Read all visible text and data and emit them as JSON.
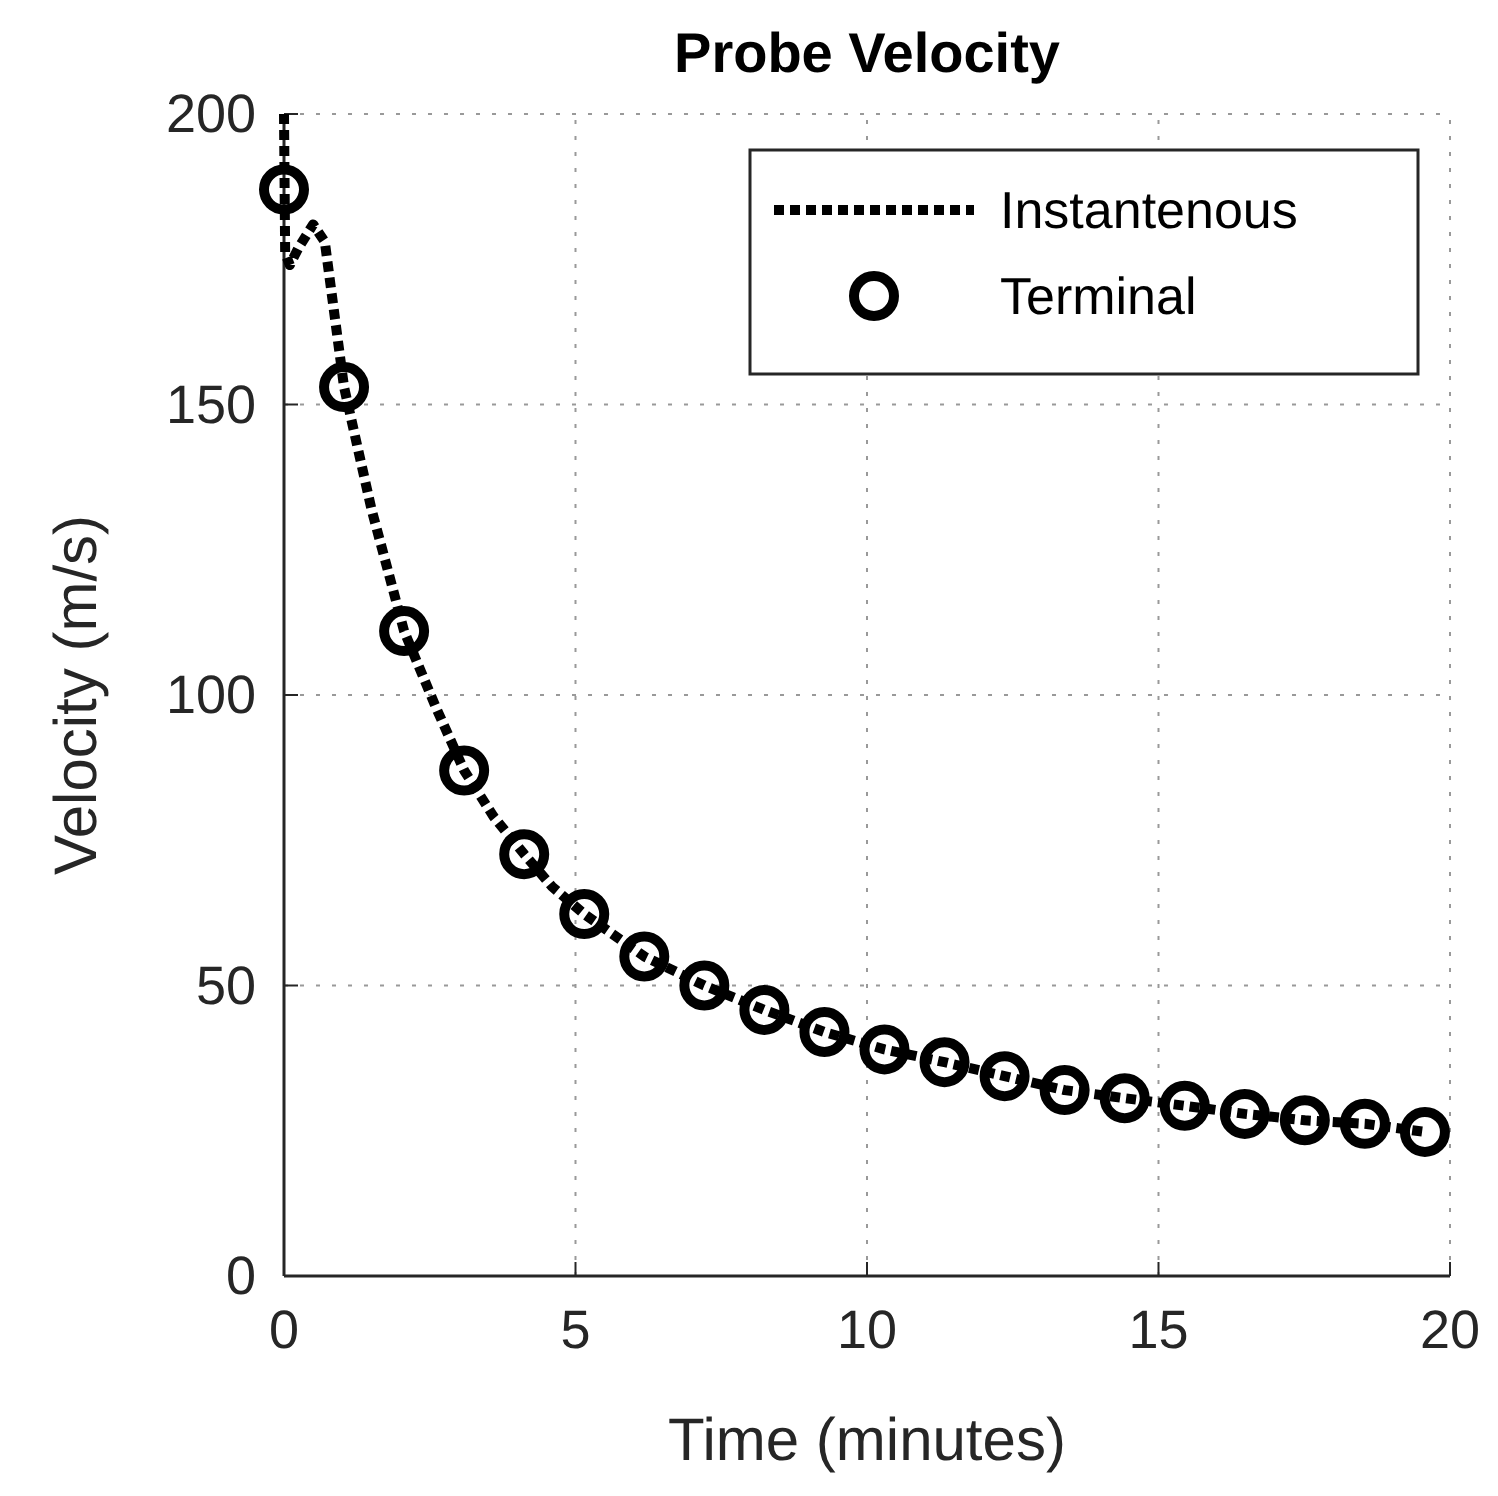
{
  "chart_data": {
    "type": "line",
    "title": "Probe Velocity",
    "xlabel": "Time (minutes)",
    "ylabel": "Velocity (m/s)",
    "xlim": [
      0,
      20
    ],
    "ylim": [
      0,
      200
    ],
    "xticks": [
      0,
      5,
      10,
      15,
      20
    ],
    "yticks": [
      0,
      50,
      100,
      150,
      200
    ],
    "grid": true,
    "legend": "top right",
    "series": [
      {
        "name": "Instantenous",
        "color": "#000000",
        "line_style": "dotted",
        "marker": "none",
        "x": [
          0,
          0.02,
          0.1,
          0.25,
          0.5,
          0.7,
          1.03,
          1.5,
          2.06,
          2.6,
          3.09,
          3.6,
          4.12,
          4.6,
          5.15,
          6.18,
          7.21,
          8.24,
          9.27,
          10.3,
          11.33,
          12.36,
          13.39,
          14.42,
          15.45,
          16.48,
          17.51,
          18.54,
          19.57
        ],
        "values": [
          200,
          176,
          174,
          177,
          181,
          178,
          153,
          132,
          111,
          98,
          87,
          79,
          72.6,
          67,
          62.3,
          55,
          50,
          45.8,
          42,
          39,
          36.8,
          34.4,
          32,
          30.6,
          29.3,
          27.9,
          26.8,
          26.2,
          24.8
        ]
      },
      {
        "name": "Terminal",
        "type": "scatter",
        "color": "#000000",
        "marker": "circle",
        "x": [
          0,
          1.03,
          2.06,
          3.09,
          4.12,
          5.15,
          6.18,
          7.21,
          8.24,
          9.27,
          10.3,
          11.33,
          12.36,
          13.39,
          14.42,
          15.45,
          16.48,
          17.51,
          18.54,
          19.57
        ],
        "values": [
          187,
          153,
          111,
          87,
          72.6,
          62.3,
          55,
          50,
          45.8,
          42,
          39,
          36.8,
          34.4,
          32,
          30.6,
          29.3,
          27.9,
          26.8,
          26.2,
          24.8
        ]
      }
    ]
  }
}
